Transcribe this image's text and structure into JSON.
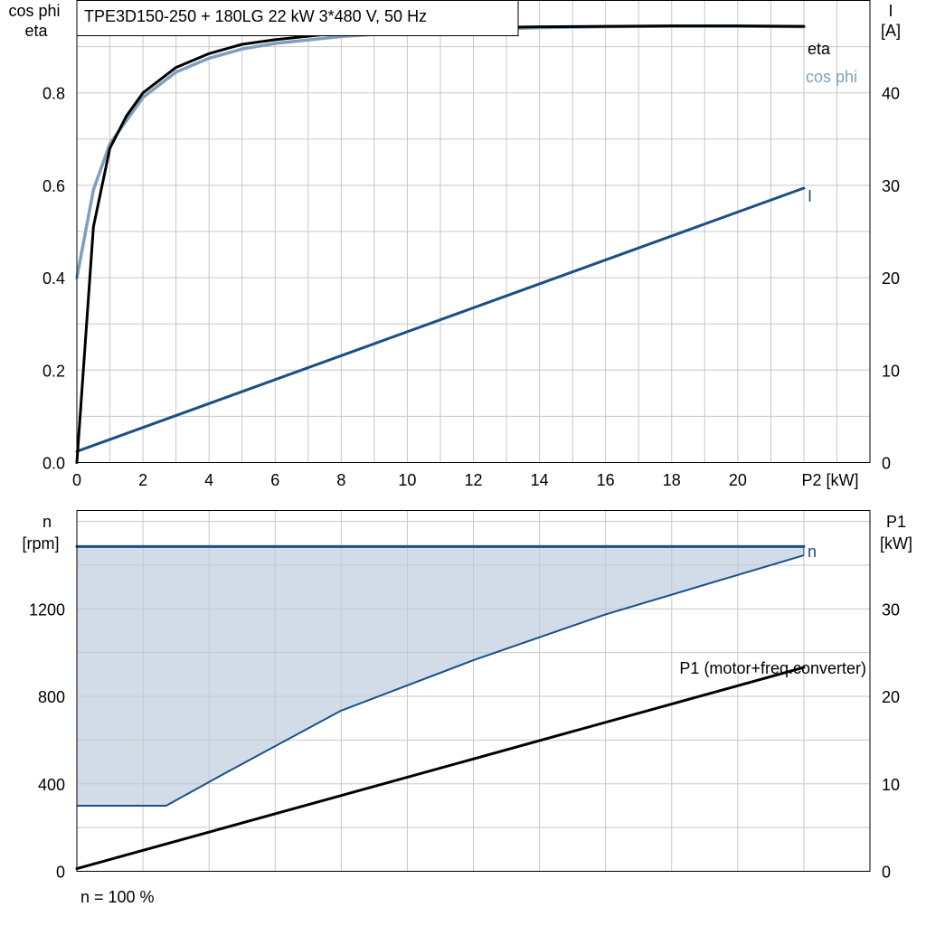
{
  "chart_data": [
    {
      "type": "line",
      "title": "TPE3D150-250 + 180LG   22 kW   3*480 V, 50 Hz",
      "xlabel": "P2 [kW]",
      "ylabel_left": [
        "cos phi",
        "eta"
      ],
      "ylabel_right": [
        "I",
        "[A]"
      ],
      "xlim": [
        0,
        24
      ],
      "ylim_left": [
        0,
        1.0
      ],
      "ylim_right": [
        0,
        50
      ],
      "grid": true,
      "x_ticks": [
        "0",
        "2",
        "4",
        "6",
        "8",
        "10",
        "12",
        "14",
        "16",
        "18",
        "20"
      ],
      "y_left_ticks": [
        "0.0",
        "0.2",
        "0.4",
        "0.6",
        "0.8"
      ],
      "y_right_ticks": [
        "0",
        "10",
        "20",
        "30",
        "40"
      ],
      "series": [
        {
          "name": "eta",
          "axis": "left",
          "color": "#000000",
          "x": [
            0,
            0.5,
            1,
            1.5,
            2,
            3,
            4,
            5,
            6,
            8,
            10,
            12,
            14,
            16,
            18,
            20,
            22
          ],
          "y": [
            0.0,
            0.51,
            0.68,
            0.75,
            0.8,
            0.855,
            0.885,
            0.905,
            0.915,
            0.93,
            0.937,
            0.941,
            0.943,
            0.944,
            0.945,
            0.945,
            0.944
          ]
        },
        {
          "name": "cos phi",
          "axis": "left",
          "color": "#7f9fbd",
          "x": [
            0,
            0.5,
            1,
            1.5,
            2,
            3,
            4,
            5,
            6,
            8,
            10,
            12,
            14,
            16,
            18,
            20,
            22
          ],
          "y": [
            0.4,
            0.59,
            0.69,
            0.74,
            0.79,
            0.845,
            0.875,
            0.895,
            0.907,
            0.922,
            0.931,
            0.937,
            0.941,
            0.943,
            0.944,
            0.944,
            0.943
          ]
        },
        {
          "name": "I",
          "axis": "right",
          "color": "#1b4f86",
          "x": [
            0,
            22
          ],
          "y": [
            1.2,
            29.7
          ]
        }
      ]
    },
    {
      "type": "line",
      "title": "",
      "xlabel": "",
      "ylabel_left": [
        "n",
        "[rpm]"
      ],
      "ylabel_right": [
        "P1",
        "[kW]"
      ],
      "xlim": [
        0,
        24
      ],
      "ylim_left": [
        0,
        1650
      ],
      "ylim_right": [
        0,
        41.25
      ],
      "grid": true,
      "y_left_ticks": [
        "0",
        "400",
        "800",
        "1200"
      ],
      "y_right_ticks": [
        "0",
        "10",
        "20",
        "30"
      ],
      "speed_band": {
        "fill": "#d1dce8",
        "upper_color": "#1b4f86",
        "lower_color": "#1b4f86",
        "upper": {
          "x": [
            0,
            22
          ],
          "y": [
            1485,
            1485
          ]
        },
        "lower": {
          "x": [
            0,
            2.7,
            4.5,
            8,
            12,
            16,
            20,
            22
          ],
          "y": [
            300,
            300,
            450,
            735,
            965,
            1175,
            1355,
            1445
          ]
        }
      },
      "series": [
        {
          "name": "n",
          "axis": "left",
          "color": "#1b4f86",
          "x": [
            0,
            22
          ],
          "y": [
            1485,
            1485
          ]
        },
        {
          "name": "P1 (motor+freq.converter)",
          "axis": "right",
          "color": "#000000",
          "x": [
            0,
            22
          ],
          "y": [
            0.3,
            23.3
          ]
        }
      ],
      "note": "n = 100 %"
    }
  ],
  "colors": {
    "grid": "#c8c8c8",
    "eta": "#000000",
    "cos_phi": "#7f9fbd",
    "current": "#1b4f86",
    "speed": "#1b4f86",
    "band": "#d1dce8",
    "p1": "#000000"
  }
}
